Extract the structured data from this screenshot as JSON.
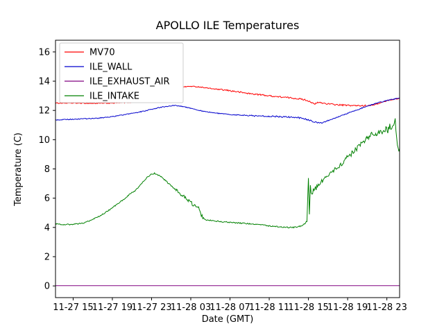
{
  "chart_data": {
    "type": "line",
    "title": "APOLLO ILE Temperatures",
    "xlabel": "Date (GMT)",
    "ylabel": "Temperature (C)",
    "xlim": [
      13.2,
      48.3
    ],
    "ylim": [
      -0.8,
      16.8
    ],
    "x_ticks": [
      15,
      19,
      23,
      27,
      31,
      35,
      39,
      43,
      47
    ],
    "x_tick_labels": [
      "11-27 15",
      "11-27 19",
      "11-27 23",
      "11-28 03",
      "11-28 07",
      "11-28 11",
      "11-28 15",
      "11-28 19",
      "11-28 23"
    ],
    "y_ticks": [
      0,
      2,
      4,
      6,
      8,
      10,
      12,
      14,
      16
    ],
    "y_tick_labels": [
      "0",
      "2",
      "4",
      "6",
      "8",
      "10",
      "12",
      "14",
      "16"
    ],
    "grid": false,
    "legend_position": "upper left",
    "series": [
      {
        "name": "MV70",
        "color": "#ff0000",
        "noise": 0.03,
        "noise_zones": [
          {
            "from": 30,
            "to": 45,
            "amp": 0.05
          }
        ],
        "x": [
          13.2,
          15,
          17,
          19,
          21,
          22.5,
          23,
          23.5,
          24,
          24.5,
          25,
          25.5,
          26,
          27,
          28,
          29,
          30,
          31,
          32,
          33,
          34,
          35,
          36,
          37,
          38,
          38.7,
          39.2,
          39.6,
          40,
          41,
          42,
          43,
          44,
          45,
          45.8,
          46.5,
          47.2,
          48.3
        ],
        "y": [
          12.5,
          12.5,
          12.48,
          12.5,
          12.55,
          12.6,
          12.65,
          12.8,
          13.05,
          13.3,
          13.45,
          13.55,
          13.6,
          13.65,
          13.6,
          13.5,
          13.42,
          13.35,
          13.25,
          13.15,
          13.08,
          13.0,
          12.93,
          12.87,
          12.8,
          12.72,
          12.6,
          12.42,
          12.55,
          12.45,
          12.38,
          12.35,
          12.32,
          12.33,
          12.4,
          12.55,
          12.7,
          12.82
        ]
      },
      {
        "name": "ILE_WALL",
        "color": "#0000cd",
        "noise": 0.03,
        "noise_zones": [
          {
            "from": 33,
            "to": 41,
            "amp": 0.05
          }
        ],
        "x": [
          13.2,
          14,
          15,
          16,
          17,
          18,
          19,
          20,
          21,
          22,
          23,
          24,
          24.5,
          25,
          25.5,
          26,
          27,
          28,
          29,
          30,
          31,
          32,
          33,
          34,
          35,
          36,
          37,
          38,
          38.5,
          39,
          39.5,
          40,
          40.5,
          41,
          42,
          43,
          44,
          45,
          46,
          47,
          48.3
        ],
        "y": [
          11.35,
          11.37,
          11.4,
          11.42,
          11.45,
          11.5,
          11.58,
          11.68,
          11.8,
          11.92,
          12.08,
          12.22,
          12.28,
          12.32,
          12.33,
          12.3,
          12.15,
          11.98,
          11.87,
          11.78,
          11.72,
          11.68,
          11.65,
          11.62,
          11.6,
          11.58,
          11.55,
          11.5,
          11.45,
          11.35,
          11.22,
          11.15,
          11.17,
          11.3,
          11.55,
          11.8,
          12.05,
          12.3,
          12.5,
          12.68,
          12.85
        ]
      },
      {
        "name": "ILE_EXHAUST_AIR",
        "color": "#800080",
        "noise": 0.0,
        "x": [
          13.2,
          48.3
        ],
        "y": [
          0.02,
          0.02
        ]
      },
      {
        "name": "ILE_INTAKE",
        "color": "#008000",
        "noise": 0.04,
        "noise_zones": [
          {
            "from": 25.5,
            "to": 28.5,
            "amp": 0.13
          },
          {
            "from": 38.8,
            "to": 48.3,
            "amp": 0.17
          }
        ],
        "x": [
          13.2,
          14,
          15,
          16,
          16.5,
          17,
          17.5,
          18,
          18.5,
          19,
          19.5,
          20,
          20.5,
          21,
          21.3,
          21.6,
          22,
          22.5,
          23,
          23.3,
          23.6,
          24,
          24.5,
          25,
          25.5,
          26,
          26.3,
          26.6,
          27,
          27.3,
          27.6,
          27.8,
          28,
          28.3,
          28.6,
          29,
          29.5,
          30,
          31,
          32,
          33,
          34,
          35,
          36,
          37,
          37.5,
          38,
          38.4,
          38.7,
          38.85,
          39,
          39.1,
          39.2,
          39.35,
          39.5,
          40,
          40.5,
          41,
          41.5,
          42,
          42.5,
          43,
          43.5,
          44,
          44.5,
          45,
          45.3,
          45.6,
          46,
          46.3,
          46.6,
          46.9,
          47.1,
          47.3,
          47.5,
          47.7,
          47.85,
          48,
          48.15,
          48.3
        ],
        "y": [
          4.25,
          4.2,
          4.2,
          4.3,
          4.4,
          4.55,
          4.7,
          4.9,
          5.1,
          5.35,
          5.6,
          5.85,
          6.1,
          6.4,
          6.5,
          6.7,
          7.0,
          7.4,
          7.65,
          7.7,
          7.6,
          7.45,
          7.15,
          6.85,
          6.55,
          6.25,
          6.1,
          5.9,
          5.7,
          5.5,
          5.35,
          5.5,
          4.9,
          4.6,
          4.5,
          4.5,
          4.45,
          4.4,
          4.35,
          4.3,
          4.25,
          4.2,
          4.1,
          4.05,
          4.0,
          4.0,
          4.05,
          4.15,
          4.3,
          4.5,
          7.3,
          5.0,
          6.8,
          6.2,
          6.5,
          6.9,
          7.2,
          7.5,
          7.8,
          8.1,
          8.45,
          8.8,
          9.1,
          9.45,
          9.8,
          10.1,
          10.3,
          10.45,
          10.3,
          10.6,
          10.4,
          10.8,
          10.6,
          11.0,
          10.7,
          11.0,
          11.4,
          10.0,
          9.3,
          9.4
        ]
      }
    ]
  },
  "layout_colors": {
    "spine": "#000000",
    "legend_border": "#cccccc",
    "background": "#ffffff"
  }
}
